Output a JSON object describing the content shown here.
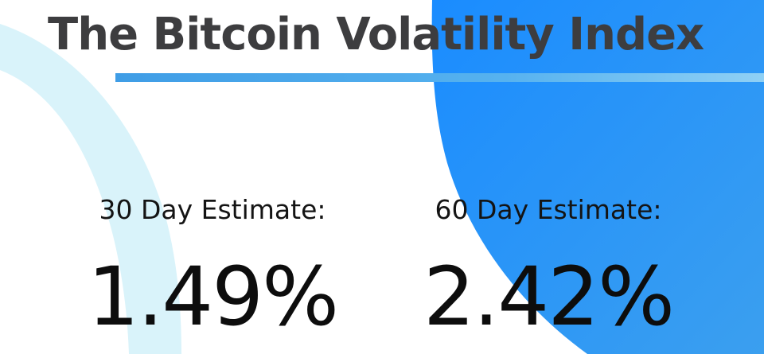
{
  "header": {
    "title": "The Bitcoin Volatility Index"
  },
  "estimates": [
    {
      "label": "30 Day Estimate:",
      "value": "1.49%"
    },
    {
      "label": "60 Day Estimate:",
      "value": "2.42%"
    }
  ],
  "colors": {
    "title_text": "#3d3d3f",
    "accent_rule": "#4aa8ec",
    "light_arc": "#d9f3fa",
    "blue_shape_start": "#1a8cff",
    "blue_shape_end": "#3b9fef",
    "value_text": "#0d0d0d"
  }
}
